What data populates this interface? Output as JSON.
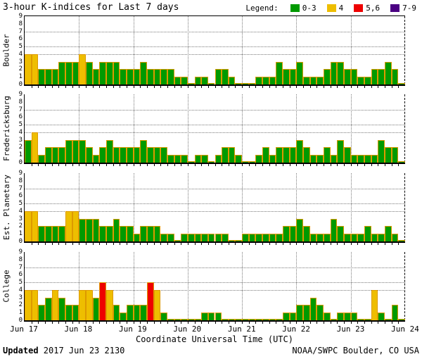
{
  "title": "3-hour K-indices for Last 7 days",
  "legend": {
    "label": "Legend:",
    "items": [
      {
        "label": "0-3",
        "color": "#009A00"
      },
      {
        "label": "4",
        "color": "#EEBE00"
      },
      {
        "label": "5,6",
        "color": "#EE0000"
      },
      {
        "label": "7-9",
        "color": "#4B0082"
      }
    ]
  },
  "colors": {
    "bar_border": "#DD9900",
    "grid": "#7a7a7a",
    "scale": [
      {
        "max": 3,
        "color": "#009A00"
      },
      {
        "max": 4,
        "color": "#EEBE00"
      },
      {
        "max": 6,
        "color": "#EE0000"
      },
      {
        "max": 9,
        "color": "#4B0082"
      }
    ]
  },
  "chart_data": {
    "type": "bar",
    "title": "3-hour K-indices for Last 7 days",
    "ylim": [
      0,
      9
    ],
    "y_ticks": [
      0,
      1,
      2,
      3,
      4,
      5,
      6,
      7,
      8,
      9
    ],
    "gridlines_y": [
      4,
      5,
      7
    ],
    "days": 7,
    "bars_per_day": 8,
    "day_labels": [
      "Jun 17",
      "Jun 18",
      "Jun 19",
      "Jun 20",
      "Jun 21",
      "Jun 22",
      "Jun 23",
      "Jun 24"
    ],
    "panels": [
      {
        "name": "Boulder",
        "values": [
          4,
          4,
          2,
          2,
          2,
          3,
          3,
          3,
          4,
          3,
          2,
          3,
          3,
          3,
          2,
          2,
          2,
          3,
          2,
          2,
          2,
          2,
          1,
          1,
          0,
          1,
          1,
          0,
          2,
          2,
          1,
          0,
          0,
          0,
          1,
          1,
          1,
          3,
          2,
          2,
          3,
          1,
          1,
          1,
          2,
          3,
          3,
          2,
          2,
          1,
          1,
          2,
          2,
          3,
          2,
          0
        ]
      },
      {
        "name": "Fredericksburg",
        "values": [
          3,
          4,
          1,
          2,
          2,
          2,
          3,
          3,
          3,
          2,
          1,
          2,
          3,
          2,
          2,
          2,
          2,
          3,
          2,
          2,
          2,
          1,
          1,
          1,
          0,
          1,
          1,
          0,
          1,
          2,
          2,
          1,
          0,
          0,
          1,
          2,
          1,
          2,
          2,
          2,
          3,
          2,
          1,
          1,
          2,
          1,
          3,
          2,
          1,
          1,
          1,
          1,
          3,
          2,
          2,
          0
        ]
      },
      {
        "name": "Est. Planetary",
        "values": [
          4,
          4,
          2,
          2,
          2,
          2,
          4,
          4,
          3,
          3,
          3,
          2,
          2,
          3,
          2,
          2,
          1,
          2,
          2,
          2,
          1,
          1,
          0,
          1,
          1,
          1,
          1,
          1,
          1,
          1,
          0,
          0,
          1,
          1,
          1,
          1,
          1,
          1,
          2,
          2,
          3,
          2,
          1,
          1,
          1,
          3,
          2,
          1,
          1,
          1,
          2,
          1,
          1,
          2,
          1,
          0
        ]
      },
      {
        "name": "College",
        "values": [
          4,
          4,
          2,
          3,
          4,
          3,
          2,
          2,
          4,
          4,
          3,
          5,
          4,
          2,
          1,
          2,
          2,
          2,
          5,
          4,
          1,
          0,
          0,
          0,
          0,
          0,
          1,
          1,
          1,
          0,
          0,
          0,
          0,
          0,
          0,
          0,
          0,
          0,
          1,
          1,
          2,
          2,
          3,
          2,
          1,
          0,
          1,
          1,
          1,
          0,
          0,
          4,
          1,
          0,
          2,
          0
        ]
      }
    ]
  },
  "x_axis_label": "Coordinate Universal Time (UTC)",
  "footer": {
    "updated_label": "Updated",
    "updated_value": " 2017 Jun 23 2130",
    "credit": "NOAA/SWPC Boulder, CO USA"
  }
}
